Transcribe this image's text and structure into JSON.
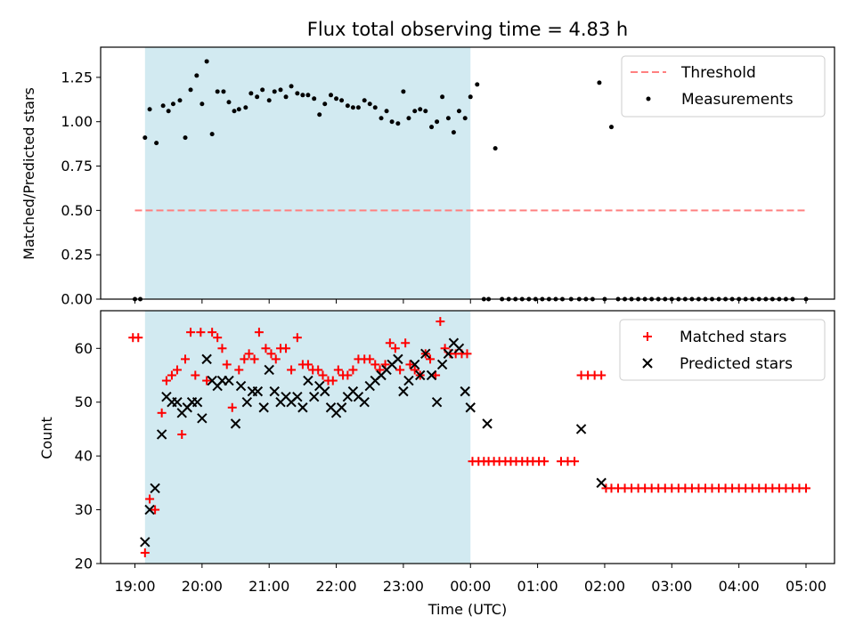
{
  "chart_data": {
    "type": "scatter",
    "title": "Flux total observing time = 4.83 h",
    "xlabel": "Time (UTC)",
    "x_tick_labels": [
      "19:00",
      "20:00",
      "21:00",
      "22:00",
      "23:00",
      "00:00",
      "01:00",
      "02:00",
      "03:00",
      "04:00",
      "05:00"
    ],
    "shaded_span_hours": [
      19.15,
      24.0
    ],
    "shade_color": "#add8e6",
    "top": {
      "ylabel": "Matched/Predicted stars",
      "ylim": [
        0,
        1.42
      ],
      "y_tick_labels": [
        "0.00",
        "0.25",
        "0.50",
        "0.75",
        "1.00",
        "1.25"
      ],
      "threshold": 0.5,
      "threshold_range_hours": [
        19.0,
        29.0
      ],
      "threshold_color": "#ff8080",
      "measurement_color": "#000000",
      "legend": [
        "Threshold",
        "Measurements"
      ],
      "measurements": {
        "x": [
          19.0,
          19.08,
          19.15,
          19.22,
          19.32,
          19.42,
          19.5,
          19.57,
          19.67,
          19.75,
          19.83,
          19.92,
          20.0,
          20.07,
          20.15,
          20.23,
          20.32,
          20.4,
          20.48,
          20.55,
          20.65,
          20.73,
          20.82,
          20.9,
          21.0,
          21.08,
          21.17,
          21.25,
          21.33,
          21.42,
          21.5,
          21.58,
          21.67,
          21.75,
          21.83,
          21.92,
          22.0,
          22.08,
          22.17,
          22.25,
          22.33,
          22.42,
          22.5,
          22.58,
          22.67,
          22.75,
          22.83,
          22.92,
          23.0,
          23.08,
          23.17,
          23.25,
          23.33,
          23.42,
          23.5,
          23.58,
          23.67,
          23.75,
          23.83,
          23.92,
          24.0,
          24.1,
          24.2,
          24.27,
          24.37,
          24.47,
          24.57,
          24.67,
          24.77,
          24.87,
          24.97,
          25.07,
          25.17,
          25.27,
          25.37,
          25.5,
          25.62,
          25.72,
          25.82,
          25.92,
          26.0,
          26.1,
          26.2,
          26.3,
          26.4,
          26.5,
          26.6,
          26.7,
          26.8,
          26.9,
          27.0,
          27.1,
          27.2,
          27.3,
          27.4,
          27.5,
          27.6,
          27.7,
          27.8,
          27.9,
          28.0,
          28.1,
          28.2,
          28.3,
          28.4,
          28.5,
          28.6,
          28.7,
          28.8,
          29.0
        ],
        "y": [
          0.0,
          0.0,
          0.91,
          1.07,
          0.88,
          1.09,
          1.06,
          1.1,
          1.12,
          0.91,
          1.18,
          1.26,
          1.1,
          1.34,
          0.93,
          1.17,
          1.17,
          1.11,
          1.06,
          1.07,
          1.08,
          1.16,
          1.14,
          1.18,
          1.12,
          1.17,
          1.18,
          1.14,
          1.2,
          1.16,
          1.15,
          1.15,
          1.13,
          1.04,
          1.1,
          1.15,
          1.13,
          1.12,
          1.09,
          1.08,
          1.08,
          1.12,
          1.1,
          1.08,
          1.02,
          1.06,
          1.0,
          0.99,
          1.17,
          1.02,
          1.06,
          1.07,
          1.06,
          0.97,
          1.0,
          1.14,
          1.02,
          0.94,
          1.06,
          1.02,
          1.14,
          1.21,
          0.0,
          0.0,
          0.85,
          0.0,
          0.0,
          0.0,
          0.0,
          0.0,
          0.0,
          0.0,
          0.0,
          0.0,
          0.0,
          0.0,
          0.0,
          0.0,
          0.0,
          1.22,
          0.0,
          0.97,
          0.0,
          0.0,
          0.0,
          0.0,
          0.0,
          0.0,
          0.0,
          0.0,
          0.0,
          0.0,
          0.0,
          0.0,
          0.0,
          0.0,
          0.0,
          0.0,
          0.0,
          0.0,
          0.0,
          0.0,
          0.0,
          0.0,
          0.0,
          0.0,
          0.0,
          0.0,
          0.0,
          0.0
        ]
      }
    },
    "bottom": {
      "ylabel": "Count",
      "ylim": [
        20,
        67
      ],
      "y_tick_labels": [
        "20",
        "30",
        "40",
        "50",
        "60"
      ],
      "legend": [
        "Matched stars",
        "Predicted stars"
      ],
      "matched_color": "#ff0000",
      "predicted_color": "#000000",
      "matched": {
        "x": [
          18.97,
          19.05,
          19.15,
          19.22,
          19.3,
          19.4,
          19.47,
          19.55,
          19.63,
          19.7,
          19.75,
          19.83,
          19.9,
          19.98,
          20.07,
          20.15,
          20.23,
          20.3,
          20.37,
          20.45,
          20.55,
          20.63,
          20.7,
          20.78,
          20.85,
          20.95,
          21.03,
          21.1,
          21.17,
          21.25,
          21.33,
          21.42,
          21.5,
          21.58,
          21.65,
          21.73,
          21.8,
          21.88,
          21.95,
          22.03,
          22.1,
          22.17,
          22.25,
          22.33,
          22.42,
          22.5,
          22.58,
          22.65,
          22.73,
          22.8,
          22.88,
          22.95,
          23.03,
          23.1,
          23.17,
          23.25,
          23.33,
          23.4,
          23.48,
          23.55,
          23.62,
          23.7,
          23.78,
          23.87,
          23.95,
          24.03,
          24.12,
          24.2,
          24.27,
          24.35,
          24.43,
          24.52,
          24.6,
          24.68,
          24.77,
          24.85,
          24.93,
          25.02,
          25.1,
          25.35,
          25.45,
          25.55,
          25.65,
          25.75,
          25.85,
          25.95,
          26.02,
          26.1,
          26.2,
          26.3,
          26.4,
          26.5,
          26.6,
          26.7,
          26.8,
          26.9,
          27.0,
          27.1,
          27.2,
          27.3,
          27.4,
          27.5,
          27.6,
          27.7,
          27.8,
          27.9,
          28.0,
          28.1,
          28.2,
          28.3,
          28.4,
          28.5,
          28.6,
          28.7,
          28.8,
          28.9,
          29.0
        ],
        "y": [
          62,
          62,
          22,
          32,
          30,
          48,
          54,
          55,
          56,
          44,
          58,
          63,
          55,
          63,
          54,
          63,
          62,
          60,
          57,
          49,
          56,
          58,
          59,
          58,
          63,
          60,
          59,
          58,
          60,
          60,
          56,
          62,
          57,
          57,
          56,
          56,
          55,
          54,
          54,
          56,
          55,
          55,
          56,
          58,
          58,
          58,
          57,
          56,
          57,
          61,
          60,
          56,
          61,
          57,
          56,
          55,
          59,
          58,
          55,
          65,
          60,
          59,
          59,
          59,
          59,
          39,
          39,
          39,
          39,
          39,
          39,
          39,
          39,
          39,
          39,
          39,
          39,
          39,
          39,
          39,
          39,
          39,
          55,
          55,
          55,
          55,
          34,
          34,
          34,
          34,
          34,
          34,
          34,
          34,
          34,
          34,
          34,
          34,
          34,
          34,
          34,
          34,
          34,
          34,
          34,
          34,
          34,
          34,
          34,
          34,
          34,
          34,
          34,
          34,
          34,
          34,
          34
        ]
      },
      "predicted": {
        "x": [
          19.15,
          19.22,
          19.3,
          19.4,
          19.47,
          19.55,
          19.63,
          19.7,
          19.78,
          19.85,
          19.93,
          20.0,
          20.07,
          20.15,
          20.23,
          20.3,
          20.4,
          20.5,
          20.58,
          20.67,
          20.75,
          20.83,
          20.92,
          21.0,
          21.08,
          21.17,
          21.25,
          21.33,
          21.42,
          21.5,
          21.58,
          21.67,
          21.75,
          21.83,
          21.92,
          22.0,
          22.08,
          22.17,
          22.25,
          22.33,
          22.42,
          22.5,
          22.58,
          22.67,
          22.75,
          22.83,
          22.92,
          23.0,
          23.08,
          23.17,
          23.25,
          23.33,
          23.42,
          23.5,
          23.58,
          23.67,
          23.75,
          23.83,
          23.92,
          24.0,
          24.25,
          25.65,
          25.95
        ],
        "y": [
          24,
          30,
          34,
          44,
          51,
          50,
          50,
          48,
          49,
          50,
          50,
          47,
          58,
          54,
          53,
          54,
          54,
          46,
          53,
          50,
          52,
          52,
          49,
          56,
          52,
          50,
          51,
          50,
          51,
          49,
          54,
          51,
          53,
          52,
          49,
          48,
          49,
          51,
          52,
          51,
          50,
          53,
          54,
          55,
          56,
          57,
          58,
          52,
          54,
          57,
          55,
          59,
          55,
          50,
          57,
          59,
          61,
          60,
          52,
          49,
          46,
          45,
          35
        ]
      }
    }
  }
}
